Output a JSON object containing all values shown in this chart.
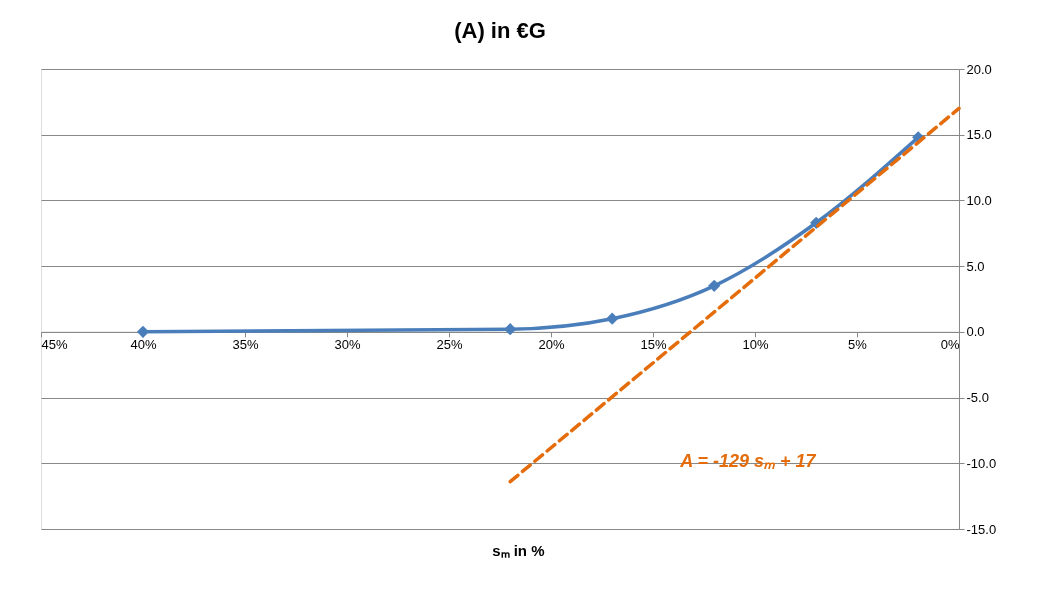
{
  "chart_data": {
    "type": "line",
    "title": "(A) in €G",
    "xlabel": "sₘ in %",
    "xlim": [
      45,
      0
    ],
    "xticks": [
      {
        "value": 45,
        "label": "45%"
      },
      {
        "value": 40,
        "label": "40%"
      },
      {
        "value": 35,
        "label": "35%"
      },
      {
        "value": 30,
        "label": "30%"
      },
      {
        "value": 25,
        "label": "25%"
      },
      {
        "value": 20,
        "label": "20%"
      },
      {
        "value": 15,
        "label": "15%"
      },
      {
        "value": 10,
        "label": "10%"
      },
      {
        "value": 5,
        "label": "5%"
      },
      {
        "value": 0,
        "label": "0%"
      }
    ],
    "ylim": [
      -15,
      20
    ],
    "yticks": [
      {
        "value": -15,
        "label": "-15.0"
      },
      {
        "value": -10,
        "label": "-10.0"
      },
      {
        "value": -5,
        "label": "-5.0"
      },
      {
        "value": 0,
        "label": "0.0"
      },
      {
        "value": 5,
        "label": "5.0"
      },
      {
        "value": 10,
        "label": "10.0"
      },
      {
        "value": 15,
        "label": "15.0"
      },
      {
        "value": 20,
        "label": "20.0"
      }
    ],
    "grid": "y",
    "legend": false,
    "series": [
      {
        "color": "#4a7ebb",
        "marker": "diamond",
        "line_style": "solid",
        "x": [
          40,
          22,
          17,
          12,
          7,
          2
        ],
        "values": [
          0.0,
          0.2,
          1.0,
          3.5,
          8.3,
          14.8
        ]
      },
      {
        "color": "#e46c0a",
        "marker": "none",
        "line_style": "dashed",
        "x": [
          22,
          0
        ],
        "values": [
          -11.4,
          17
        ]
      }
    ],
    "annotations": [
      "A = -129 sₘ + 17"
    ]
  }
}
